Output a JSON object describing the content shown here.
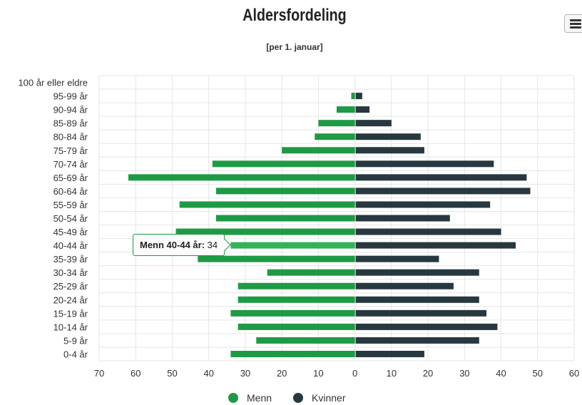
{
  "chart_data": {
    "type": "bar",
    "orientation": "horizontal-population-pyramid",
    "title": "Aldersfordeling",
    "subtitle": "[per 1. januar]",
    "categories": [
      "100 år eller eldre",
      "95-99 år",
      "90-94 år",
      "85-89 år",
      "80-84 år",
      "75-79 år",
      "70-74 år",
      "65-69 år",
      "60-64 år",
      "55-59 år",
      "50-54 år",
      "45-49 år",
      "40-44 år",
      "35-39 år",
      "30-34 år",
      "25-29 år",
      "20-24 år",
      "15-19 år",
      "10-14 år",
      "5-9 år",
      "0-4 år"
    ],
    "series": [
      {
        "name": "Menn",
        "color": "#1e9a45",
        "values": [
          0,
          1,
          5,
          10,
          11,
          20,
          39,
          62,
          38,
          48,
          38,
          49,
          34,
          43,
          24,
          32,
          32,
          34,
          32,
          27,
          34
        ]
      },
      {
        "name": "Kvinner",
        "color": "#27383f",
        "values": [
          0,
          2,
          4,
          10,
          18,
          19,
          38,
          47,
          48,
          37,
          26,
          40,
          44,
          23,
          34,
          27,
          34,
          36,
          39,
          34,
          19
        ]
      }
    ],
    "xlim": [
      -70,
      60
    ],
    "xticks": [
      "70",
      "60",
      "50",
      "40",
      "30",
      "20",
      "10",
      "0",
      "10",
      "20",
      "30",
      "40",
      "50",
      "60"
    ],
    "grid": true,
    "legend_position": "bottom"
  },
  "tooltip": {
    "label": "Menn 40-44 år:",
    "value": "34",
    "category_index": 12
  },
  "colors": {
    "menn_highlight": "#33b25a",
    "grid": "#e6e6e6"
  },
  "menu_icon": "hamburger-menu-icon"
}
